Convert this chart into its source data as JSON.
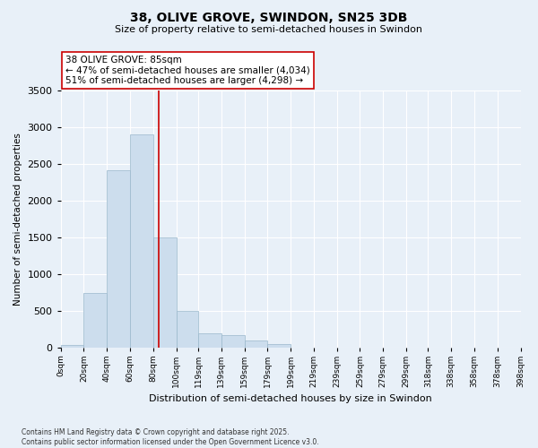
{
  "title": "38, OLIVE GROVE, SWINDON, SN25 3DB",
  "subtitle": "Size of property relative to semi-detached houses in Swindon",
  "xlabel": "Distribution of semi-detached houses by size in Swindon",
  "ylabel": "Number of semi-detached properties",
  "footnote": "Contains HM Land Registry data © Crown copyright and database right 2025.\nContains public sector information licensed under the Open Government Licence v3.0.",
  "bar_color": "#ccdded",
  "bar_edge_color": "#9ab8cc",
  "background_color": "#e8f0f8",
  "grid_color": "#ffffff",
  "vline_color": "#cc0000",
  "vline_x": 85,
  "annotation_text": "38 OLIVE GROVE: 85sqm\n← 47% of semi-detached houses are smaller (4,034)\n51% of semi-detached houses are larger (4,298) →",
  "annotation_box_color": "#ffffff",
  "annotation_border_color": "#cc0000",
  "ylim": [
    0,
    3500
  ],
  "bin_edges": [
    0,
    20,
    40,
    60,
    80,
    100,
    119,
    139,
    159,
    179,
    199,
    219,
    239,
    259,
    279,
    299,
    318,
    338,
    358,
    378,
    398
  ],
  "bin_labels": [
    "0sqm",
    "20sqm",
    "40sqm",
    "60sqm",
    "80sqm",
    "100sqm",
    "119sqm",
    "139sqm",
    "159sqm",
    "179sqm",
    "199sqm",
    "219sqm",
    "239sqm",
    "259sqm",
    "279sqm",
    "299sqm",
    "318sqm",
    "338sqm",
    "358sqm",
    "378sqm",
    "398sqm"
  ],
  "bar_heights": [
    40,
    750,
    2420,
    2900,
    1500,
    500,
    200,
    175,
    100,
    50,
    10,
    0,
    0,
    0,
    0,
    0,
    0,
    0,
    0,
    0
  ],
  "figsize": [
    6.0,
    5.0
  ],
  "dpi": 100
}
